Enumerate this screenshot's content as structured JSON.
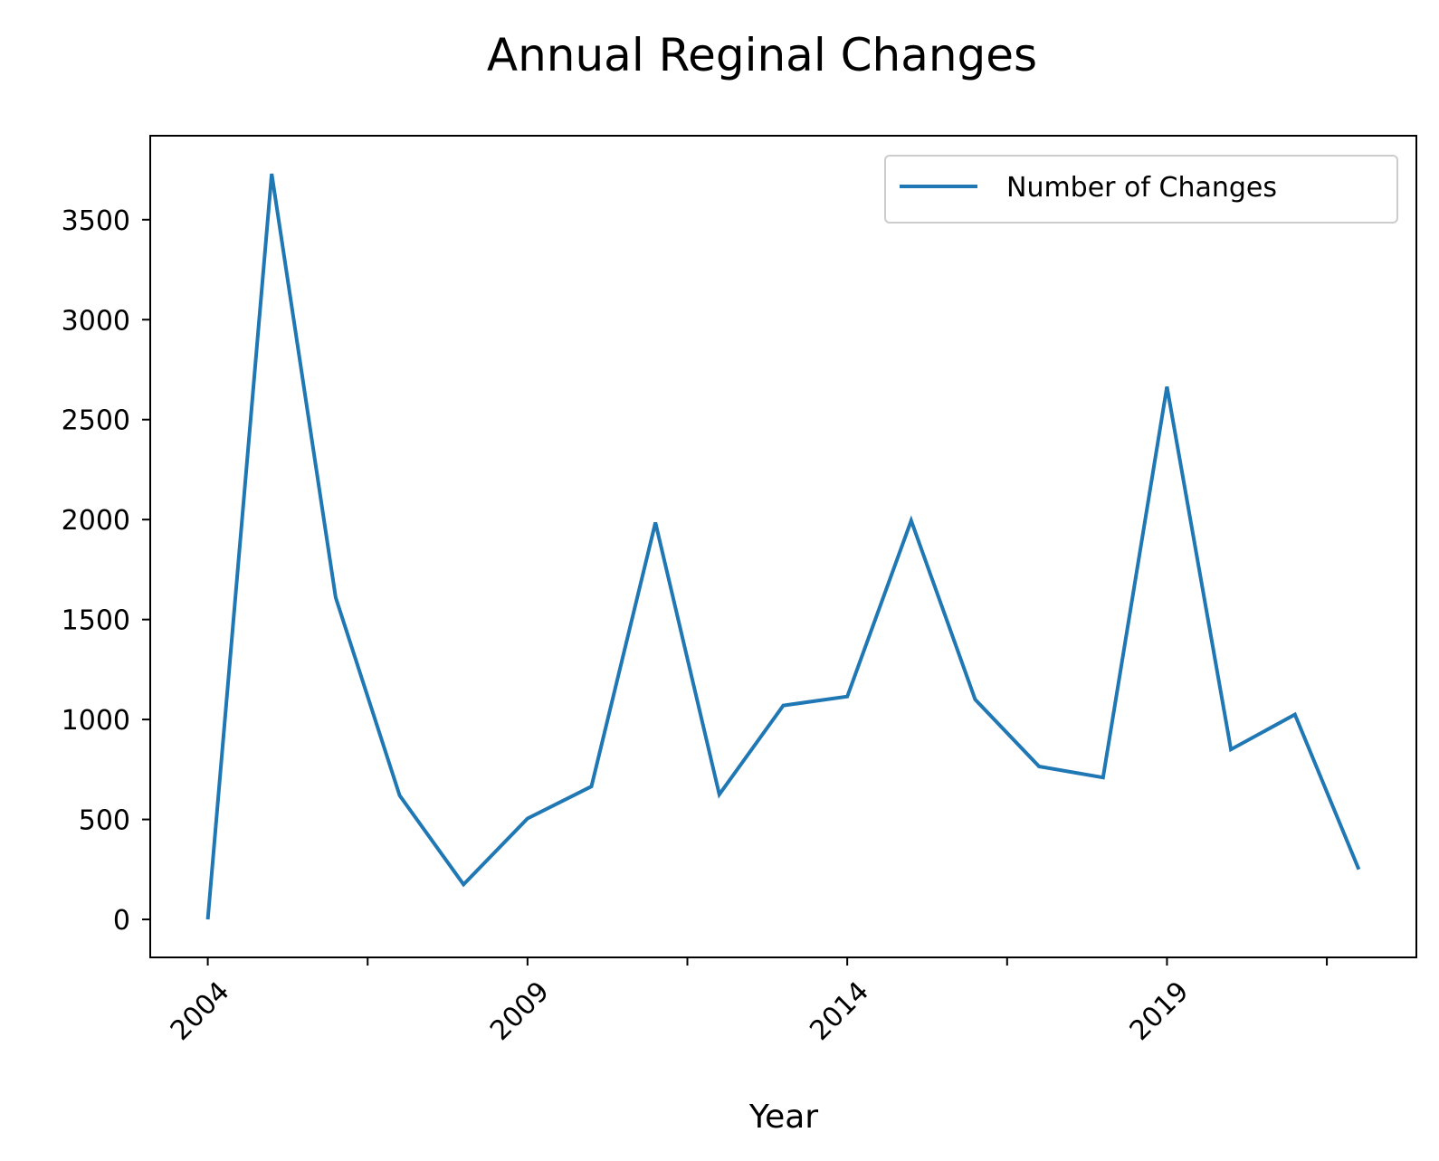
{
  "chart_data": {
    "type": "line",
    "title": "Annual Reginal Changes",
    "xlabel": "Year",
    "ylabel": "",
    "x": [
      2004,
      2005,
      2006,
      2007,
      2008,
      2009,
      2010,
      2011,
      2012,
      2013,
      2014,
      2015,
      2016,
      2017,
      2018,
      2019,
      2020,
      2021,
      2022
    ],
    "series": [
      {
        "name": "Number of Changes",
        "color": "#1f77b4",
        "values": [
          0,
          3730,
          1610,
          620,
          175,
          505,
          665,
          1985,
          625,
          1070,
          1115,
          1995,
          1100,
          765,
          710,
          2665,
          850,
          1025,
          250
        ]
      }
    ],
    "xlim": [
      2003.1,
      2022.9
    ],
    "ylim": [
      -190,
      3920
    ],
    "xticks": [
      2004,
      2006.5,
      2009,
      2011.5,
      2014,
      2016.5,
      2019,
      2021.5
    ],
    "xtick_labels": [
      "2004",
      "",
      "2009",
      "",
      "2014",
      "",
      "2019",
      ""
    ],
    "yticks": [
      0,
      500,
      1000,
      1500,
      2000,
      2500,
      3000,
      3500
    ],
    "ytick_labels": [
      "0",
      "500",
      "1000",
      "1500",
      "2000",
      "2500",
      "3000",
      "3500"
    ],
    "grid": false,
    "legend_position": "top-right"
  }
}
